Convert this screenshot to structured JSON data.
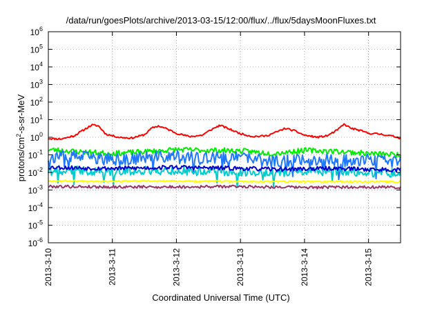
{
  "chart_data": {
    "type": "line",
    "title": "/data/run/goesPlots/archive/2013-03-15/12:00/flux/../flux/5daysMoonFluxes.txt",
    "xlabel": "Coordinated Universal Time (UTC)",
    "ylabel_parts": [
      "protons/cm",
      "2",
      "-s-sr-MeV"
    ],
    "yscale": "log",
    "ylim": [
      1e-06,
      1000000
    ],
    "y_ticks": [
      {
        "base": "10",
        "exp": "-6",
        "value": -6
      },
      {
        "base": "10",
        "exp": "-5",
        "value": -5
      },
      {
        "base": "10",
        "exp": "-4",
        "value": -4
      },
      {
        "base": "10",
        "exp": "-3",
        "value": -3
      },
      {
        "base": "10",
        "exp": "-2",
        "value": -2
      },
      {
        "base": "10",
        "exp": "-1",
        "value": -1
      },
      {
        "base": "10",
        "exp": "0",
        "value": 0
      },
      {
        "base": "10",
        "exp": "1",
        "value": 1
      },
      {
        "base": "10",
        "exp": "2",
        "value": 2
      },
      {
        "base": "10",
        "exp": "3",
        "value": 3
      },
      {
        "base": "10",
        "exp": "4",
        "value": 4
      },
      {
        "base": "10",
        "exp": "5",
        "value": 5
      },
      {
        "base": "10",
        "exp": "6",
        "value": 6
      }
    ],
    "x_range_days": [
      0,
      5.5
    ],
    "x_ticks": [
      {
        "label": "2013-3-10",
        "day": 0
      },
      {
        "label": "2013-3-11",
        "day": 1
      },
      {
        "label": "2013-3-12",
        "day": 2
      },
      {
        "label": "2013-3-13",
        "day": 3
      },
      {
        "label": "2013-3-14",
        "day": 4
      },
      {
        "label": "2013-3-15",
        "day": 5
      }
    ],
    "grid": true,
    "legend": "none",
    "series": [
      {
        "color": "#ff0000",
        "noise": 0.05,
        "seed": 11,
        "points": [
          [
            0,
            0.85
          ],
          [
            0.2,
            0.8
          ],
          [
            0.4,
            1.2
          ],
          [
            0.55,
            2.6
          ],
          [
            0.68,
            5.0
          ],
          [
            0.78,
            4.5
          ],
          [
            0.9,
            1.5
          ],
          [
            1.1,
            1.0
          ],
          [
            1.3,
            0.9
          ],
          [
            1.5,
            1.4
          ],
          [
            1.62,
            3.4
          ],
          [
            1.72,
            4.4
          ],
          [
            1.85,
            3.0
          ],
          [
            2.0,
            1.7
          ],
          [
            2.2,
            1.1
          ],
          [
            2.4,
            1.3
          ],
          [
            2.55,
            2.8
          ],
          [
            2.68,
            4.8
          ],
          [
            2.8,
            3.2
          ],
          [
            3.0,
            1.6
          ],
          [
            3.2,
            1.1
          ],
          [
            3.4,
            1.2
          ],
          [
            3.55,
            1.9
          ],
          [
            3.7,
            3.2
          ],
          [
            3.85,
            2.3
          ],
          [
            4.0,
            1.3
          ],
          [
            4.2,
            1.0
          ],
          [
            4.35,
            1.2
          ],
          [
            4.5,
            2.4
          ],
          [
            4.62,
            5.5
          ],
          [
            4.72,
            3.3
          ],
          [
            4.85,
            2.5
          ],
          [
            5.0,
            1.7
          ],
          [
            5.2,
            1.5
          ],
          [
            5.4,
            1.1
          ],
          [
            5.5,
            0.9
          ]
        ]
      },
      {
        "color": "#00ee00",
        "noise": 0.15,
        "seed": 23,
        "points": [
          [
            0,
            0.2
          ],
          [
            0.5,
            0.15
          ],
          [
            1.0,
            0.12
          ],
          [
            1.5,
            0.15
          ],
          [
            2.0,
            0.2
          ],
          [
            2.5,
            0.18
          ],
          [
            3.0,
            0.17
          ],
          [
            3.5,
            0.12
          ],
          [
            4.0,
            0.18
          ],
          [
            4.5,
            0.16
          ],
          [
            5.0,
            0.12
          ],
          [
            5.5,
            0.1
          ]
        ]
      },
      {
        "color": "#1e78ff",
        "noise": 0.35,
        "seed": 37,
        "dips": true,
        "points": [
          [
            0,
            0.07
          ],
          [
            0.5,
            0.08
          ],
          [
            1.0,
            0.05
          ],
          [
            1.5,
            0.07
          ],
          [
            2.0,
            0.08
          ],
          [
            2.5,
            0.06
          ],
          [
            3.0,
            0.07
          ],
          [
            3.5,
            0.04
          ],
          [
            4.0,
            0.06
          ],
          [
            4.5,
            0.05
          ],
          [
            5.0,
            0.05
          ],
          [
            5.5,
            0.04
          ]
        ]
      },
      {
        "color": "#00cccc",
        "noise": 0.25,
        "seed": 41,
        "dips": true,
        "points": [
          [
            0,
            0.012
          ],
          [
            0.5,
            0.013
          ],
          [
            1.0,
            0.011
          ],
          [
            1.5,
            0.013
          ],
          [
            2.0,
            0.012
          ],
          [
            2.5,
            0.012
          ],
          [
            3.0,
            0.011
          ],
          [
            3.5,
            0.01
          ],
          [
            4.0,
            0.011
          ],
          [
            4.5,
            0.012
          ],
          [
            5.0,
            0.01
          ],
          [
            5.5,
            0.009
          ]
        ]
      },
      {
        "color": "#0000cc",
        "noise": 0.12,
        "seed": 53,
        "points": [
          [
            0,
            0.02
          ],
          [
            0.5,
            0.018
          ],
          [
            1.0,
            0.017
          ],
          [
            1.5,
            0.018
          ],
          [
            2.0,
            0.02
          ],
          [
            2.5,
            0.018
          ],
          [
            3.0,
            0.017
          ],
          [
            3.5,
            0.015
          ],
          [
            4.0,
            0.016
          ],
          [
            4.5,
            0.017
          ],
          [
            5.0,
            0.015
          ],
          [
            5.5,
            0.014
          ]
        ]
      },
      {
        "color": "#ffff00",
        "noise": 0.05,
        "seed": 67,
        "points": [
          [
            0,
            0.0033
          ],
          [
            1.0,
            0.0032
          ],
          [
            2.0,
            0.0032
          ],
          [
            3.0,
            0.0031
          ],
          [
            4.0,
            0.003
          ],
          [
            5.0,
            0.003
          ],
          [
            5.5,
            0.0029
          ]
        ]
      },
      {
        "color": "#993366",
        "noise": 0.08,
        "seed": 79,
        "points": [
          [
            0,
            0.0016
          ],
          [
            1.0,
            0.0015
          ],
          [
            2.0,
            0.0015
          ],
          [
            3.0,
            0.0016
          ],
          [
            4.0,
            0.0014
          ],
          [
            5.0,
            0.0015
          ],
          [
            5.5,
            0.0014
          ]
        ]
      }
    ]
  }
}
